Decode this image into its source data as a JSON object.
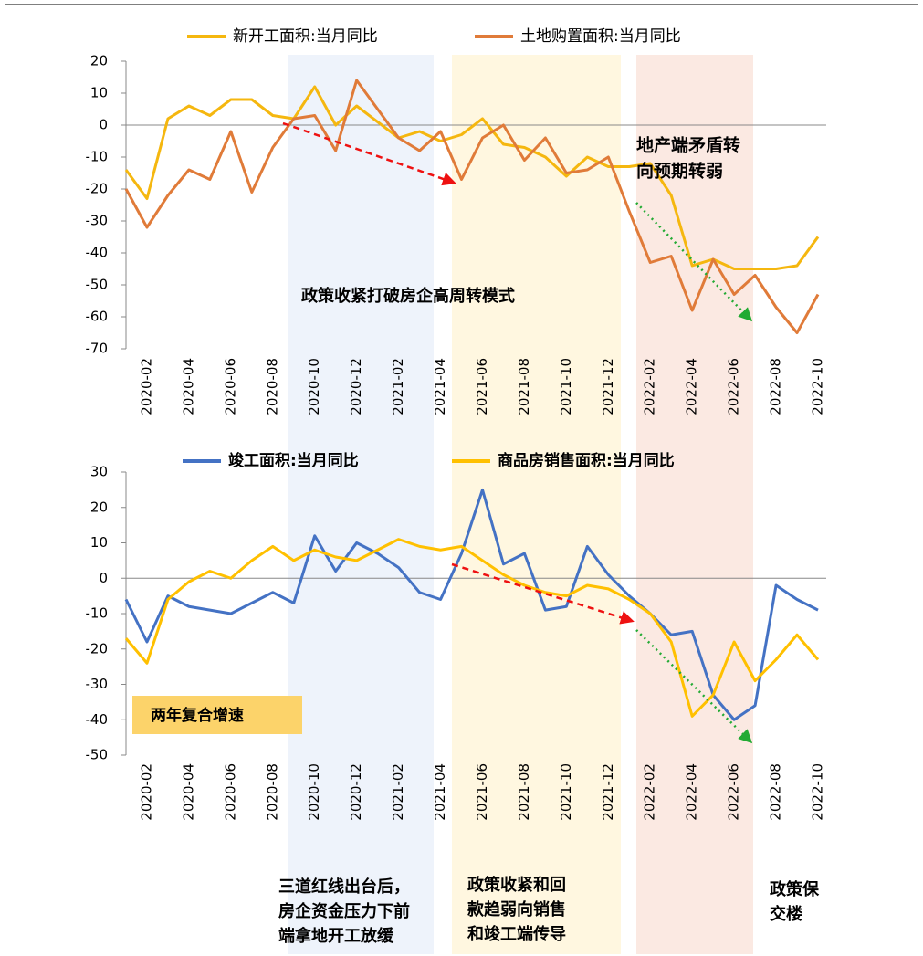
{
  "chart_data": [
    {
      "type": "line",
      "categories": [
        null,
        "2020-02",
        null,
        "2020-04",
        null,
        "2020-06",
        null,
        "2020-08",
        null,
        "2020-10",
        null,
        "2020-12",
        null,
        "2021-02",
        null,
        "2021-04",
        null,
        "2021-06",
        null,
        "2021-08",
        null,
        "2021-10",
        null,
        "2021-12",
        null,
        "2022-02",
        null,
        "2022-04",
        null,
        "2022-06",
        null,
        "2022-08",
        null,
        "2022-10"
      ],
      "series": [
        {
          "name": "新开工面积:当月同比",
          "color": "#f5b70f",
          "values": [
            -14,
            -23,
            2,
            6,
            3,
            8,
            8,
            3,
            2,
            12,
            0,
            6,
            1,
            -4,
            -2,
            -5,
            -3,
            2,
            -6,
            -7,
            -10,
            -16,
            -10,
            -13,
            -13,
            -12,
            -22,
            -44,
            -42,
            -45,
            -45,
            -45,
            -44,
            -35
          ]
        },
        {
          "name": "土地购置面积:当月同比",
          "color": "#e07b39",
          "values": [
            -20,
            -32,
            -22,
            -14,
            -17,
            -2,
            -21,
            -7,
            2,
            3,
            -8,
            14,
            5,
            -4,
            -8,
            -2,
            -17,
            -4,
            0,
            -11,
            -4,
            -15,
            -14,
            -10,
            -27,
            -43,
            -41,
            -58,
            -42,
            -53,
            -47,
            -57,
            -65,
            -53
          ]
        }
      ],
      "ylim": [
        -70,
        20
      ],
      "yticks": [
        20,
        10,
        0,
        -10,
        -20,
        -30,
        -40,
        -50,
        -60,
        -70
      ],
      "annotations": [
        "政策收紧打破房企高周转模式",
        "地产端矛盾转",
        "向预期转弱"
      ]
    },
    {
      "type": "line",
      "categories": [
        null,
        "2020-02",
        null,
        "2020-04",
        null,
        "2020-06",
        null,
        "2020-08",
        null,
        "2020-10",
        null,
        "2020-12",
        null,
        "2021-02",
        null,
        "2021-04",
        null,
        "2021-06",
        null,
        "2021-08",
        null,
        "2021-10",
        null,
        "2021-12",
        null,
        "2022-02",
        null,
        "2022-04",
        null,
        "2022-06",
        null,
        "2022-08",
        null,
        "2022-10"
      ],
      "series": [
        {
          "name": "竣工面积:当月同比",
          "color": "#4472c4",
          "values": [
            -6,
            -18,
            -5,
            -8,
            -9,
            -10,
            -7,
            -4,
            -7,
            12,
            2,
            10,
            7,
            3,
            -4,
            -6,
            7,
            25,
            4,
            7,
            -9,
            -8,
            9,
            1,
            -5,
            -10,
            -16,
            -15,
            -33,
            -40,
            -36,
            -2,
            -6,
            -9
          ]
        },
        {
          "name": "商品房销售面积:当月同比",
          "color": "#ffc000",
          "values": [
            -17,
            -24,
            -6,
            -1,
            2,
            0,
            5,
            9,
            5,
            8,
            6,
            5,
            8,
            11,
            9,
            8,
            9,
            5,
            1,
            -2,
            -4,
            -5,
            -2,
            -3,
            -6,
            -10,
            -18,
            -39,
            -33,
            -18,
            -29,
            -23,
            -16,
            -23
          ]
        }
      ],
      "ylim": [
        -50,
        30
      ],
      "yticks": [
        30,
        20,
        10,
        0,
        -10,
        -20,
        -30,
        -40,
        -50
      ],
      "annotations": [
        "两年复合增速"
      ]
    }
  ],
  "notes": [
    [
      "三道红线出台后，",
      "房企资金压力下前",
      "端拿地开工放缓"
    ],
    [
      "政策收紧和回",
      "款趋弱向销售",
      "和竣工端传导"
    ],
    [
      "政策保",
      "交楼"
    ]
  ]
}
